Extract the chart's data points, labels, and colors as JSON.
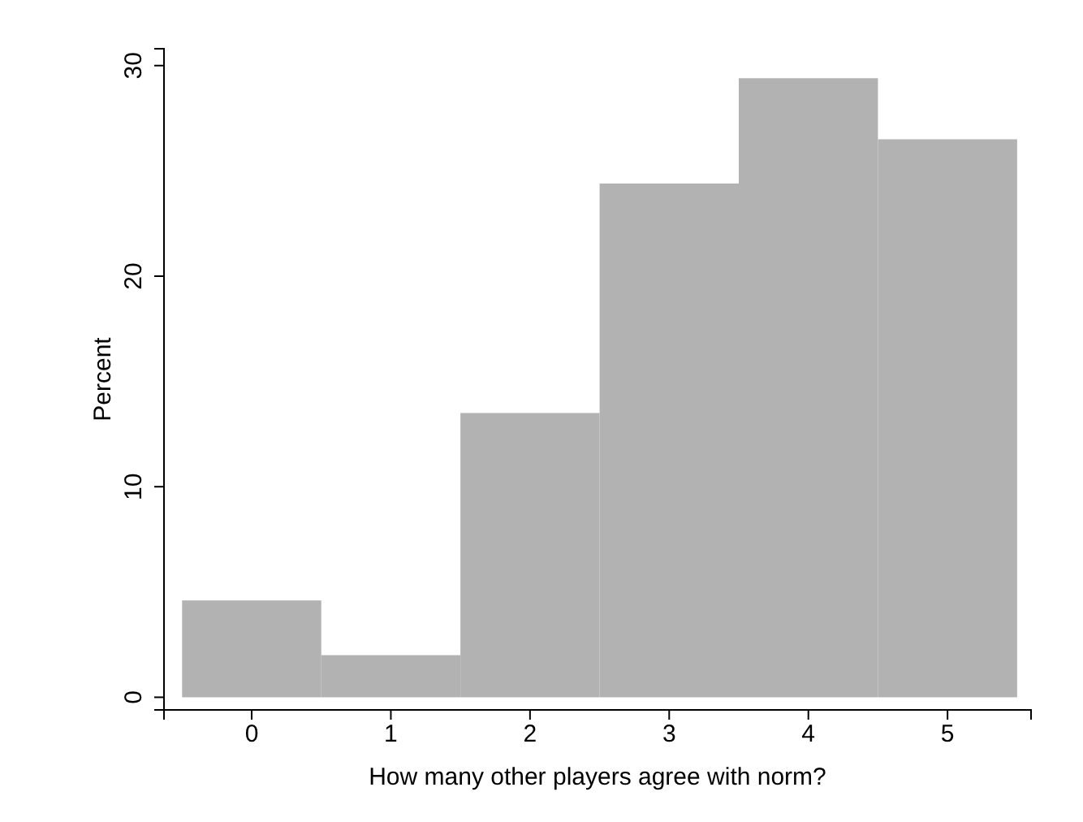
{
  "chart_data": {
    "type": "histogram",
    "xlabel": "How many other players agree with norm?",
    "ylabel": "Percent",
    "bins": [
      -0.5,
      0.5,
      1.5,
      2.5,
      3.5,
      4.5,
      5.5
    ],
    "values": [
      4.6,
      2.0,
      13.5,
      24.4,
      29.4,
      26.5
    ],
    "color": "#b2b2b2",
    "xlim": [
      -0.63,
      5.6
    ],
    "xticks": [
      0,
      1,
      2,
      3,
      4,
      5
    ],
    "ylim": [
      -0.6,
      30.8
    ],
    "yticks": [
      0,
      10,
      20,
      30
    ],
    "grid": false
  }
}
